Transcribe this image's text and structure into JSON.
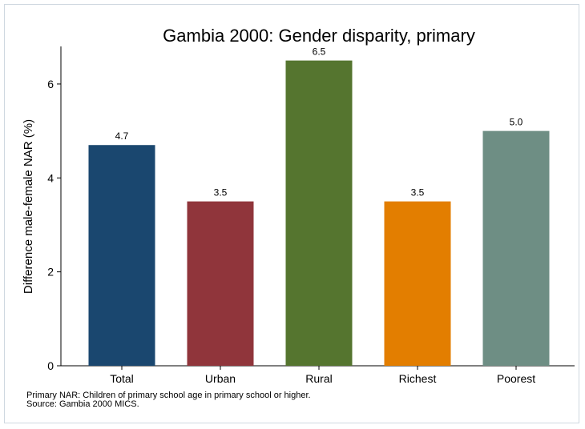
{
  "chart_data": {
    "type": "bar",
    "title": "Gambia 2000: Gender disparity, primary",
    "xlabel": "",
    "ylabel": "Difference male-female NAR (%)",
    "categories": [
      "Total",
      "Urban",
      "Rural",
      "Richest",
      "Poorest"
    ],
    "values": [
      4.7,
      3.5,
      6.5,
      3.5,
      5.0
    ],
    "value_labels": [
      "4.7",
      "3.5",
      "6.5",
      "3.5",
      "5.0"
    ],
    "colors": [
      "#1a476f",
      "#90353b",
      "#55752f",
      "#e37e00",
      "#6e8e84"
    ],
    "yticks": [
      "0",
      "2",
      "4",
      "6"
    ],
    "ylim": [
      0,
      6.8
    ],
    "grid": false,
    "legend": "none"
  },
  "notes": {
    "line1": "Primary NAR: Children of primary school age in primary school or higher.",
    "line2": "Source: Gambia 2000 MICS."
  }
}
